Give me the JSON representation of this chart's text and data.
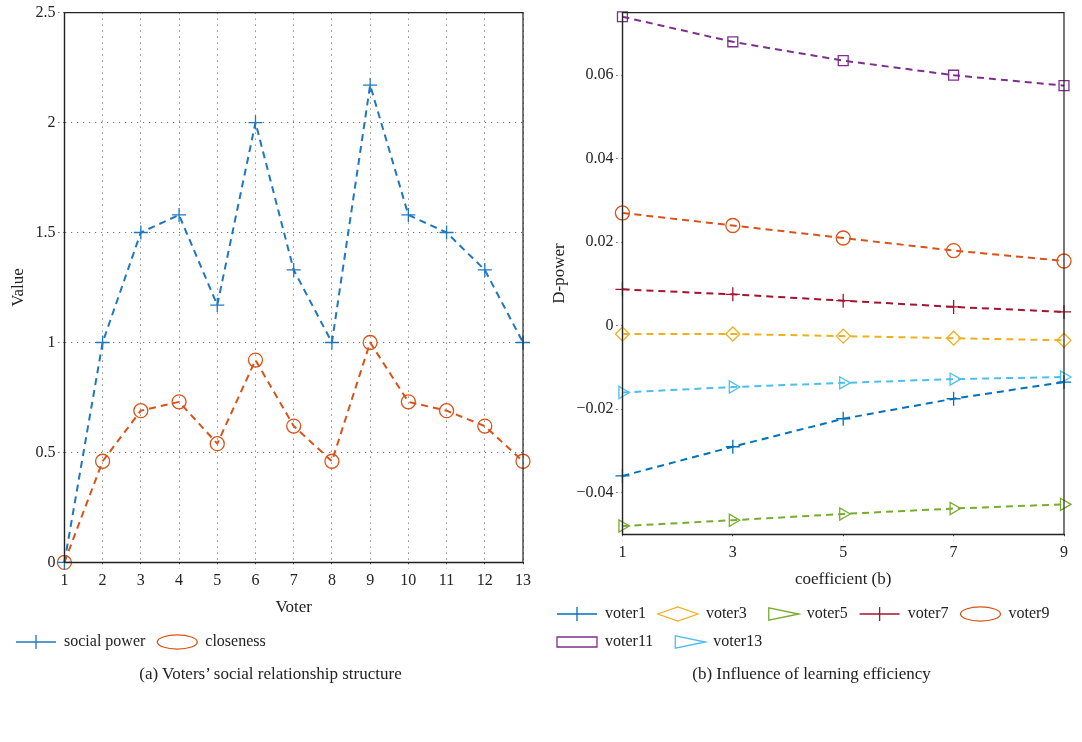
{
  "chart_data": [
    {
      "type": "line",
      "xlabel": "Voter",
      "ylabel": "Value",
      "x": [
        1,
        2,
        3,
        4,
        5,
        6,
        7,
        8,
        9,
        10,
        11,
        12,
        13
      ],
      "series": [
        {
          "name": "social power",
          "color": "#1f77c0",
          "marker": "cross",
          "values": [
            0,
            1,
            1.5,
            1.58,
            1.17,
            2,
            1.33,
            1,
            2.17,
            1.58,
            1.5,
            1.33,
            1
          ]
        },
        {
          "name": "closeness",
          "color": "#d95319",
          "marker": "circle",
          "values": [
            0,
            0.46,
            0.69,
            0.73,
            0.54,
            0.92,
            0.62,
            0.46,
            1,
            0.73,
            0.69,
            0.62,
            0.46
          ]
        }
      ],
      "xlim": [
        1,
        13
      ],
      "xticks": [
        1,
        2,
        3,
        4,
        5,
        6,
        7,
        8,
        9,
        10,
        11,
        12,
        13
      ],
      "ylim": [
        0,
        2.5
      ],
      "yticks": [
        0,
        0.5,
        1,
        1.5,
        2,
        2.5
      ],
      "grid": true,
      "legend": "bottom",
      "line_style": "dashed",
      "annotations": [
        "(a)  Voters’ social relationship structure"
      ]
    },
    {
      "type": "line",
      "xlabel": "coefficient (b)",
      "ylabel": "D-power",
      "x": [
        1,
        3,
        5,
        7,
        9
      ],
      "series": [
        {
          "name": "voter1",
          "color": "#0072bd",
          "marker": "cross",
          "values": [
            -0.036,
            -0.029,
            -0.0223,
            -0.0175,
            -0.0135
          ]
        },
        {
          "name": "voter3",
          "color": "#edb120",
          "marker": "diamond",
          "values": [
            -0.002,
            -0.002,
            -0.0025,
            -0.003,
            -0.0035
          ]
        },
        {
          "name": "voter5",
          "color": "#77ac30",
          "marker": "triangle",
          "values": [
            -0.048,
            -0.0466,
            -0.0451,
            -0.0438,
            -0.0428
          ]
        },
        {
          "name": "voter7",
          "color": "#a2142f",
          "marker": "cross",
          "values": [
            0.0087,
            0.0075,
            0.006,
            0.0045,
            0.0033
          ]
        },
        {
          "name": "voter9",
          "color": "#d95319",
          "marker": "circle",
          "values": [
            0.027,
            0.024,
            0.021,
            0.018,
            0.0155
          ]
        },
        {
          "name": "voter11",
          "color": "#7e2f8e",
          "marker": "square",
          "values": [
            0.074,
            0.068,
            0.0635,
            0.06,
            0.0575
          ]
        },
        {
          "name": "voter13",
          "color": "#4dbeee",
          "marker": "triangle",
          "values": [
            -0.016,
            -0.0147,
            -0.0137,
            -0.0128,
            -0.0123
          ]
        }
      ],
      "xlim": [
        1,
        9
      ],
      "xticks": [
        1,
        3,
        5,
        7,
        9
      ],
      "ylim": [
        -0.05,
        0.075
      ],
      "yticks": [
        {
          "value": -0.04,
          "label": "−0.04"
        },
        {
          "value": -0.02,
          "label": "−0.02"
        },
        0,
        0.02,
        0.04,
        0.06
      ],
      "grid": false,
      "legend": "bottom",
      "line_style": "dashed",
      "annotations": [
        "(b)  Influence of learning efficiency"
      ]
    }
  ]
}
